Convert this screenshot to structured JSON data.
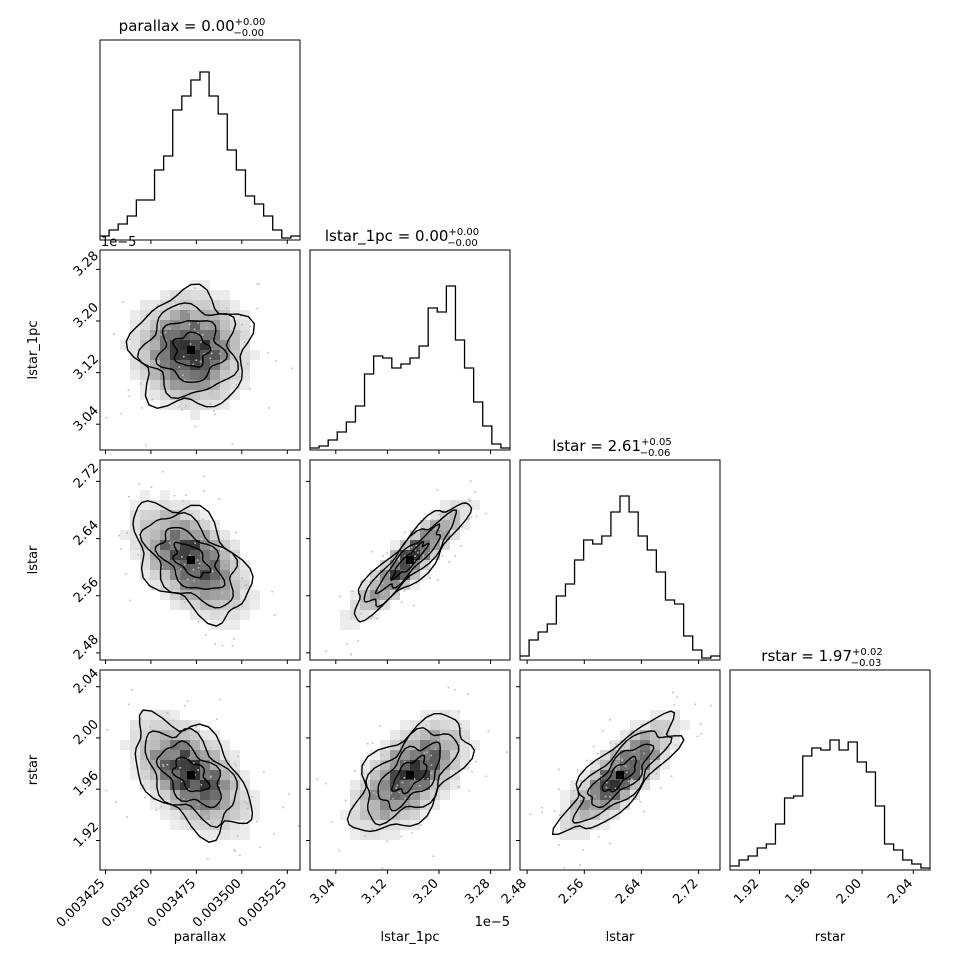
{
  "chart_data": {
    "type": "corner",
    "parameters": [
      "parallax",
      "lstar_1pc",
      "lstar",
      "rstar"
    ],
    "axis_labels": {
      "parallax": "parallax",
      "lstar_1pc": "lstar_1pc",
      "lstar": "lstar",
      "rstar": "rstar"
    },
    "titles": {
      "parallax": {
        "name": "parallax",
        "value": "0.00",
        "plus": "+0.00",
        "minus": "−0.00"
      },
      "lstar_1pc": {
        "name": "lstar_1pc",
        "value": "0.00",
        "plus": "+0.00",
        "minus": "−0.00"
      },
      "lstar": {
        "name": "lstar",
        "value": "2.61",
        "plus": "+0.05",
        "minus": "−0.06"
      },
      "rstar": {
        "name": "rstar",
        "value": "1.97",
        "plus": "+0.02",
        "minus": "−0.03"
      }
    },
    "ranges": {
      "parallax": [
        0.003422,
        0.003532
      ],
      "lstar_1pc": [
        3.0,
        3.31
      ],
      "lstar": [
        2.47,
        2.75
      ],
      "rstar": [
        1.897,
        2.053
      ]
    },
    "ticks": {
      "parallax": [
        "0.003425",
        "0.003450",
        "0.003475",
        "0.003500",
        "0.003525"
      ],
      "lstar_1pc": [
        "3.04",
        "3.12",
        "3.20",
        "3.28"
      ],
      "lstar": [
        "2.48",
        "2.56",
        "2.64",
        "2.72"
      ],
      "rstar": [
        "1.92",
        "1.96",
        "2.00",
        "2.04"
      ]
    },
    "offset_text": {
      "lstar_1pc": "1e−5"
    },
    "histograms": {
      "parallax": [
        0.02,
        0.05,
        0.08,
        0.12,
        0.2,
        0.2,
        0.35,
        0.42,
        0.65,
        0.72,
        0.8,
        0.84,
        0.72,
        0.63,
        0.45,
        0.35,
        0.22,
        0.18,
        0.12,
        0.05,
        0.01,
        0.02
      ],
      "lstar_1pc": [
        0.01,
        0.02,
        0.05,
        0.09,
        0.14,
        0.22,
        0.38,
        0.47,
        0.46,
        0.41,
        0.43,
        0.46,
        0.52,
        0.71,
        0.69,
        0.82,
        0.55,
        0.41,
        0.24,
        0.12,
        0.03,
        0.01
      ],
      "lstar": [
        0.02,
        0.1,
        0.14,
        0.18,
        0.32,
        0.38,
        0.5,
        0.6,
        0.58,
        0.62,
        0.74,
        0.82,
        0.74,
        0.62,
        0.55,
        0.44,
        0.3,
        0.28,
        0.12,
        0.05,
        0.01,
        0.02
      ],
      "rstar": [
        0.02,
        0.05,
        0.07,
        0.11,
        0.13,
        0.23,
        0.36,
        0.37,
        0.57,
        0.61,
        0.6,
        0.65,
        0.6,
        0.64,
        0.54,
        0.49,
        0.32,
        0.13,
        0.1,
        0.05,
        0.03,
        0.01
      ]
    },
    "correlations": {
      "lstar_1pc|parallax": 0.0,
      "lstar|parallax": -0.5,
      "lstar|lstar_1pc": 0.9,
      "rstar|parallax": -0.5,
      "rstar|lstar_1pc": 0.6,
      "rstar|lstar": 0.8
    },
    "grid": false
  }
}
